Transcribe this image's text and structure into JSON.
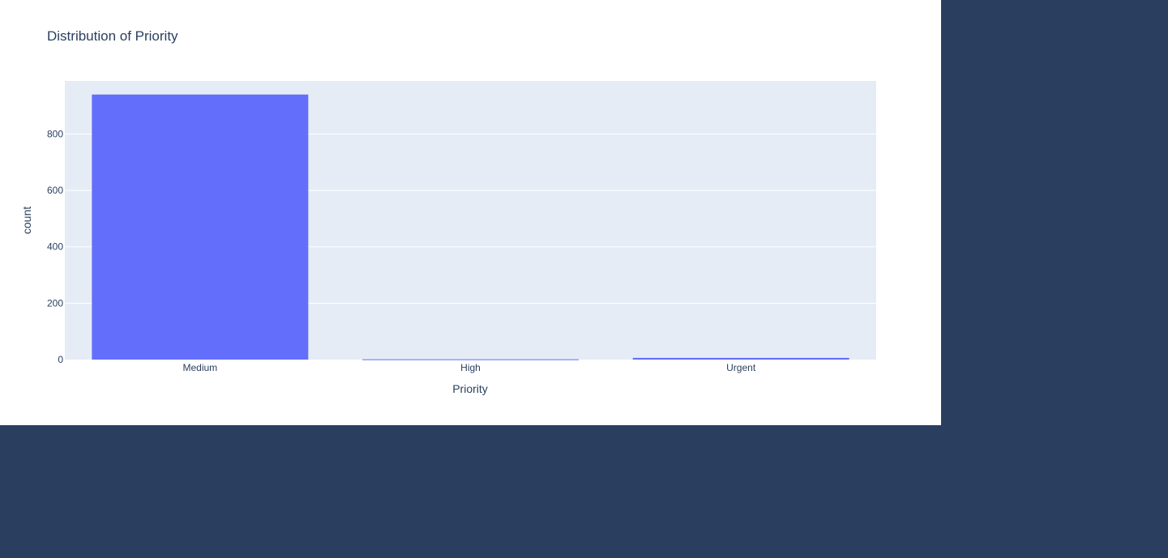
{
  "chart_data": {
    "type": "bar",
    "title": "Distribution of Priority",
    "xlabel": "Priority",
    "ylabel": "count",
    "categories": [
      "Medium",
      "High",
      "Urgent"
    ],
    "values": [
      940,
      1,
      6
    ],
    "ylim": [
      0,
      988
    ],
    "yticks": [
      0,
      200,
      400,
      600,
      800
    ],
    "grid": true,
    "bar_color": "#636efa",
    "plot_background": "#e5ecf6",
    "gridline_color": "#ffffff",
    "text_color": "#2a3f5f"
  }
}
